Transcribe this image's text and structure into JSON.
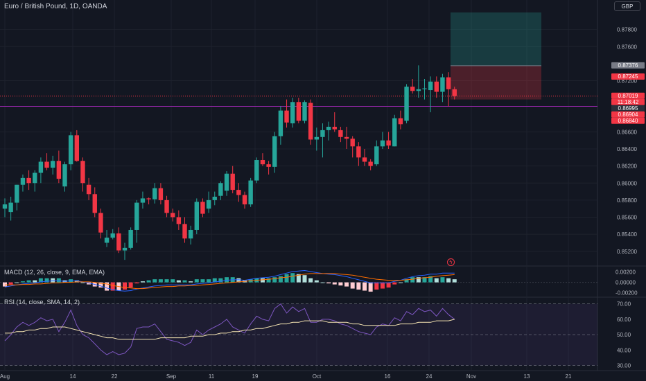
{
  "header": {
    "title": "Euro / British Pound, 1D, OANDA",
    "currency": "GBP"
  },
  "colors": {
    "up": "#26a69a",
    "down": "#f23645",
    "bg": "#131722",
    "grid": "#1e222d",
    "macd": "#2962ff",
    "signal": "#ff6d00",
    "rsi": "#7e57c2",
    "rsi_ma": "#f7e7b4"
  },
  "chart_data": [
    {
      "type": "candlestick",
      "title": "Euro / British Pound, 1D, OANDA",
      "y_ticks": [
        "0.87800",
        "0.87600",
        "0.87200",
        "0.86600",
        "0.86400",
        "0.86200",
        "0.86000",
        "0.85800",
        "0.85600",
        "0.85400",
        "0.85200"
      ],
      "ylim": [
        0.8506,
        0.88
      ],
      "x_ticks": [
        "Aug",
        "14",
        "22",
        "Sep",
        "11",
        "19",
        "Oct",
        "16",
        "24",
        "Nov",
        "13",
        "21"
      ],
      "candles": [
        {
          "o": 0.857,
          "h": 0.8582,
          "l": 0.856,
          "c": 0.8575
        },
        {
          "o": 0.8566,
          "h": 0.8584,
          "l": 0.8556,
          "c": 0.8577
        },
        {
          "o": 0.8577,
          "h": 0.8598,
          "l": 0.8568,
          "c": 0.8598
        },
        {
          "o": 0.8598,
          "h": 0.861,
          "l": 0.859,
          "c": 0.8606
        },
        {
          "o": 0.8606,
          "h": 0.8615,
          "l": 0.8592,
          "c": 0.86
        },
        {
          "o": 0.86,
          "h": 0.8615,
          "l": 0.859,
          "c": 0.8612
        },
        {
          "o": 0.8612,
          "h": 0.863,
          "l": 0.86,
          "c": 0.8625
        },
        {
          "o": 0.8625,
          "h": 0.8635,
          "l": 0.8615,
          "c": 0.8618
        },
        {
          "o": 0.8618,
          "h": 0.8632,
          "l": 0.861,
          "c": 0.8626
        },
        {
          "o": 0.8626,
          "h": 0.8638,
          "l": 0.86,
          "c": 0.8605
        },
        {
          "o": 0.8596,
          "h": 0.8625,
          "l": 0.859,
          "c": 0.8622
        },
        {
          "o": 0.8622,
          "h": 0.866,
          "l": 0.8615,
          "c": 0.8656
        },
        {
          "o": 0.8656,
          "h": 0.8662,
          "l": 0.8625,
          "c": 0.8626
        },
        {
          "o": 0.8626,
          "h": 0.863,
          "l": 0.859,
          "c": 0.86
        },
        {
          "o": 0.8598,
          "h": 0.8606,
          "l": 0.858,
          "c": 0.8587
        },
        {
          "o": 0.8587,
          "h": 0.8595,
          "l": 0.856,
          "c": 0.8565
        },
        {
          "o": 0.8565,
          "h": 0.857,
          "l": 0.8535,
          "c": 0.8542
        },
        {
          "o": 0.853,
          "h": 0.8545,
          "l": 0.8525,
          "c": 0.8536
        },
        {
          "o": 0.8536,
          "h": 0.8546,
          "l": 0.8534,
          "c": 0.8541
        },
        {
          "o": 0.8541,
          "h": 0.8548,
          "l": 0.8518,
          "c": 0.8521
        },
        {
          "o": 0.8521,
          "h": 0.853,
          "l": 0.851,
          "c": 0.8524
        },
        {
          "o": 0.8524,
          "h": 0.8548,
          "l": 0.8522,
          "c": 0.8545
        },
        {
          "o": 0.8545,
          "h": 0.858,
          "l": 0.853,
          "c": 0.8577
        },
        {
          "o": 0.8577,
          "h": 0.859,
          "l": 0.857,
          "c": 0.8582
        },
        {
          "o": 0.8582,
          "h": 0.8583,
          "l": 0.8575,
          "c": 0.8581
        },
        {
          "o": 0.8581,
          "h": 0.86,
          "l": 0.8576,
          "c": 0.8594
        },
        {
          "o": 0.8594,
          "h": 0.86,
          "l": 0.8575,
          "c": 0.858
        },
        {
          "o": 0.858,
          "h": 0.8585,
          "l": 0.856,
          "c": 0.8565
        },
        {
          "o": 0.8565,
          "h": 0.857,
          "l": 0.8555,
          "c": 0.856
        },
        {
          "o": 0.856,
          "h": 0.8568,
          "l": 0.8545,
          "c": 0.8552
        },
        {
          "o": 0.8552,
          "h": 0.856,
          "l": 0.853,
          "c": 0.8535
        },
        {
          "o": 0.8535,
          "h": 0.855,
          "l": 0.8528,
          "c": 0.8545
        },
        {
          "o": 0.8545,
          "h": 0.8582,
          "l": 0.854,
          "c": 0.8578
        },
        {
          "o": 0.8578,
          "h": 0.8582,
          "l": 0.856,
          "c": 0.8564
        },
        {
          "o": 0.857,
          "h": 0.859,
          "l": 0.8565,
          "c": 0.858
        },
        {
          "o": 0.858,
          "h": 0.859,
          "l": 0.8574,
          "c": 0.8584
        },
        {
          "o": 0.8585,
          "h": 0.8602,
          "l": 0.858,
          "c": 0.86
        },
        {
          "o": 0.8591,
          "h": 0.8614,
          "l": 0.8585,
          "c": 0.8611
        },
        {
          "o": 0.8611,
          "h": 0.862,
          "l": 0.8588,
          "c": 0.8592
        },
        {
          "o": 0.8592,
          "h": 0.86,
          "l": 0.8578,
          "c": 0.8586
        },
        {
          "o": 0.8586,
          "h": 0.859,
          "l": 0.857,
          "c": 0.8575
        },
        {
          "o": 0.8575,
          "h": 0.8606,
          "l": 0.8572,
          "c": 0.8603
        },
        {
          "o": 0.8603,
          "h": 0.863,
          "l": 0.86,
          "c": 0.8627
        },
        {
          "o": 0.8627,
          "h": 0.8635,
          "l": 0.862,
          "c": 0.8622
        },
        {
          "o": 0.8622,
          "h": 0.8626,
          "l": 0.861,
          "c": 0.8619
        },
        {
          "o": 0.8619,
          "h": 0.866,
          "l": 0.8612,
          "c": 0.8655
        },
        {
          "o": 0.8655,
          "h": 0.869,
          "l": 0.8645,
          "c": 0.8685
        },
        {
          "o": 0.8685,
          "h": 0.8698,
          "l": 0.8665,
          "c": 0.8671
        },
        {
          "o": 0.867,
          "h": 0.87,
          "l": 0.8665,
          "c": 0.8695
        },
        {
          "o": 0.8695,
          "h": 0.87,
          "l": 0.867,
          "c": 0.8673
        },
        {
          "o": 0.8673,
          "h": 0.8697,
          "l": 0.867,
          "c": 0.8695
        },
        {
          "o": 0.8694,
          "h": 0.8698,
          "l": 0.8645,
          "c": 0.8651
        },
        {
          "o": 0.8651,
          "h": 0.8665,
          "l": 0.8638,
          "c": 0.8654
        },
        {
          "o": 0.8654,
          "h": 0.867,
          "l": 0.863,
          "c": 0.8662
        },
        {
          "o": 0.8662,
          "h": 0.8672,
          "l": 0.865,
          "c": 0.8666
        },
        {
          "o": 0.8666,
          "h": 0.8683,
          "l": 0.866,
          "c": 0.8663
        },
        {
          "o": 0.8662,
          "h": 0.8666,
          "l": 0.8648,
          "c": 0.8654
        },
        {
          "o": 0.8654,
          "h": 0.8666,
          "l": 0.864,
          "c": 0.8652
        },
        {
          "o": 0.8652,
          "h": 0.8655,
          "l": 0.863,
          "c": 0.8643
        },
        {
          "o": 0.8643,
          "h": 0.8648,
          "l": 0.862,
          "c": 0.863
        },
        {
          "o": 0.863,
          "h": 0.864,
          "l": 0.862,
          "c": 0.8625
        },
        {
          "o": 0.8625,
          "h": 0.8628,
          "l": 0.8615,
          "c": 0.862
        },
        {
          "o": 0.8622,
          "h": 0.865,
          "l": 0.862,
          "c": 0.8643
        },
        {
          "o": 0.8643,
          "h": 0.866,
          "l": 0.864,
          "c": 0.865
        },
        {
          "o": 0.865,
          "h": 0.866,
          "l": 0.864,
          "c": 0.8644
        },
        {
          "o": 0.8643,
          "h": 0.868,
          "l": 0.8643,
          "c": 0.8676
        },
        {
          "o": 0.8676,
          "h": 0.8685,
          "l": 0.8663,
          "c": 0.8669
        },
        {
          "o": 0.8673,
          "h": 0.8716,
          "l": 0.867,
          "c": 0.8713
        },
        {
          "o": 0.8713,
          "h": 0.8722,
          "l": 0.8705,
          "c": 0.8708
        },
        {
          "o": 0.8708,
          "h": 0.8738,
          "l": 0.87,
          "c": 0.871
        },
        {
          "o": 0.871,
          "h": 0.8722,
          "l": 0.8698,
          "c": 0.8711
        },
        {
          "o": 0.8709,
          "h": 0.8725,
          "l": 0.8683,
          "c": 0.8719
        },
        {
          "o": 0.8719,
          "h": 0.8725,
          "l": 0.87,
          "c": 0.8707
        },
        {
          "o": 0.8707,
          "h": 0.8728,
          "l": 0.8695,
          "c": 0.8724
        },
        {
          "o": 0.8724,
          "h": 0.873,
          "l": 0.869,
          "c": 0.871
        },
        {
          "o": 0.871,
          "h": 0.8713,
          "l": 0.8698,
          "c": 0.8702
        }
      ],
      "price_tags": [
        {
          "value": 0.87376,
          "label": "0.87376",
          "bg": "#787b86"
        },
        {
          "value": 0.87245,
          "label": "0.87245",
          "bg": "#f23645"
        },
        {
          "value": 0.87019,
          "label": "0.87019",
          "bg": "#f23645"
        },
        {
          "value": 0.86995,
          "label": "11:18:42",
          "bg": "#f23645"
        },
        {
          "value": 0.86995,
          "label": "0.86995",
          "bg": "#2a2e39"
        },
        {
          "value": 0.86904,
          "label": "0.86904",
          "bg": "#f23645"
        },
        {
          "value": 0.8684,
          "label": "0.86840",
          "bg": "#f23645"
        }
      ],
      "position": {
        "entry": 0.87376,
        "target": 0.88,
        "stop": 0.8698
      },
      "horizontal_line": 0.869,
      "current_price": 0.87019
    },
    {
      "type": "macd",
      "title": "MACD (12, 26, close, 9, EMA, EMA)",
      "y_ticks": [
        "0.00200",
        "0.00000",
        "-0.00200"
      ],
      "ylim": [
        -0.0026,
        0.0029
      ],
      "macd": [
        -0.0009,
        -0.0007,
        -0.0005,
        -0.0003,
        -0.0002,
        -0.0001,
        0.0001,
        0.0002,
        0.0003,
        0.0003,
        0.0002,
        0.0003,
        0.0003,
        0.0001,
        -0.0001,
        -0.0004,
        -0.0007,
        -0.0011,
        -0.0014,
        -0.0016,
        -0.0017,
        -0.0016,
        -0.0013,
        -0.0011,
        -0.0009,
        -0.0007,
        -0.0006,
        -0.0005,
        -0.0005,
        -0.0005,
        -0.0005,
        -0.0005,
        -0.0003,
        -0.0002,
        -0.0001,
        0.0001,
        0.0002,
        0.0004,
        0.0005,
        0.0005,
        0.0004,
        0.0006,
        0.0008,
        0.0009,
        0.001,
        0.0012,
        0.0015,
        0.0018,
        0.0021,
        0.0022,
        0.0023,
        0.0021,
        0.0019,
        0.0017,
        0.0016,
        0.0015,
        0.0013,
        0.0011,
        0.0008,
        0.0005,
        0.0002,
        -0.0001,
        -0.0001,
        -0.0001,
        -0.0001,
        0.0002,
        0.0004,
        0.0008,
        0.0011,
        0.0013,
        0.0014,
        0.0016,
        0.0016,
        0.0018,
        0.0018,
        0.0018
      ],
      "signal": [
        -0.0005,
        -0.0005,
        -0.0005,
        -0.0004,
        -0.0004,
        -0.0003,
        -0.0003,
        -0.0002,
        -0.0001,
        -0.0001,
        0.0,
        0.0,
        0.0001,
        0.0001,
        0.0001,
        0.0,
        -0.0002,
        -0.0003,
        -0.0006,
        -0.0008,
        -0.001,
        -0.0011,
        -0.0012,
        -0.0012,
        -0.0011,
        -0.001,
        -0.0009,
        -0.0008,
        -0.0008,
        -0.0007,
        -0.0007,
        -0.0006,
        -0.0006,
        -0.0005,
        -0.0004,
        -0.0003,
        -0.0002,
        -0.0001,
        0.0,
        0.0001,
        0.0002,
        0.0003,
        0.0004,
        0.0005,
        0.0006,
        0.0007,
        0.0009,
        0.001,
        0.0012,
        0.0014,
        0.0016,
        0.0017,
        0.0017,
        0.0017,
        0.0017,
        0.0017,
        0.0016,
        0.0015,
        0.0014,
        0.0012,
        0.001,
        0.0008,
        0.0006,
        0.0005,
        0.0004,
        0.0004,
        0.0004,
        0.0005,
        0.0006,
        0.0008,
        0.0009,
        0.001,
        0.0012,
        0.0013,
        0.0014,
        0.0015
      ]
    },
    {
      "type": "rsi",
      "title": "RSI (14, close, SMA, 14, 2)",
      "y_ticks": [
        "70.00",
        "60.00",
        "50.00",
        "40.00",
        "30.00"
      ],
      "ylim": [
        28,
        73
      ],
      "band": [
        30,
        70
      ],
      "rsi": [
        46,
        50,
        55,
        58,
        56,
        58,
        61,
        59,
        60,
        52,
        58,
        66,
        56,
        50,
        48,
        44,
        40,
        37,
        39,
        37,
        38,
        42,
        54,
        55,
        55,
        57,
        52,
        47,
        46,
        45,
        43,
        45,
        53,
        50,
        53,
        55,
        57,
        60,
        55,
        53,
        51,
        57,
        62,
        60,
        59,
        67,
        70,
        64,
        68,
        65,
        67,
        58,
        58,
        60,
        60,
        59,
        57,
        56,
        54,
        52,
        51,
        50,
        55,
        57,
        56,
        61,
        59,
        65,
        63,
        67,
        65,
        66,
        62,
        67,
        63,
        60
      ],
      "rsi_ma": [
        51,
        51,
        52,
        52,
        53,
        53,
        54,
        54,
        55,
        55,
        55,
        54,
        53,
        52,
        51,
        50,
        49,
        48,
        48,
        47,
        47,
        47,
        47,
        47,
        47,
        47,
        48,
        48,
        48,
        48,
        48,
        49,
        49,
        49,
        50,
        50,
        51,
        51,
        52,
        52,
        53,
        53,
        54,
        54,
        55,
        56,
        57,
        57,
        58,
        58,
        59,
        59,
        59,
        59,
        58,
        58,
        58,
        58,
        57,
        57,
        56,
        56,
        56,
        56,
        56,
        56,
        57,
        57,
        57,
        58,
        58,
        58,
        59,
        59,
        59,
        60
      ]
    }
  ]
}
